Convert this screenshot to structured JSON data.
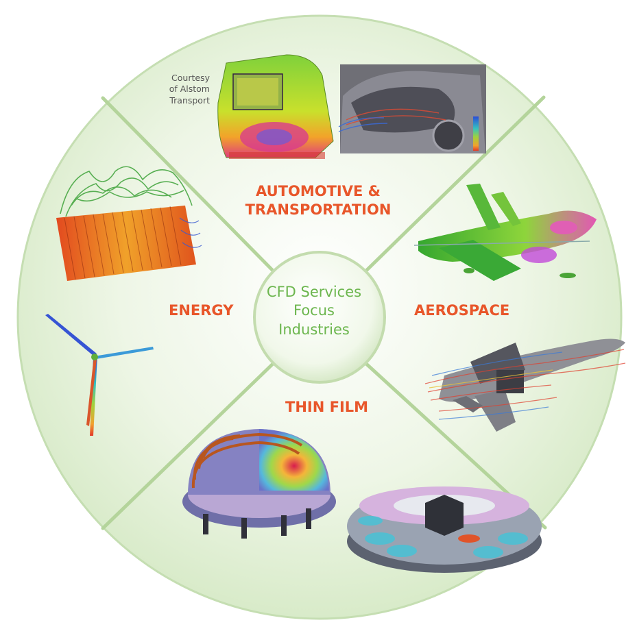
{
  "center": {
    "lines": [
      "CFD Services",
      "Focus",
      "Industries"
    ]
  },
  "segments": {
    "automotive": {
      "line1": "AUTOMOTIVE &",
      "line2": "TRANSPORTATION"
    },
    "aerospace": {
      "label": "AEROSPACE"
    },
    "thin_film": {
      "label": "THIN FILM"
    },
    "energy": {
      "label": "ENERGY"
    }
  },
  "courtesy": {
    "line1": "Courtesy",
    "line2": "of Alstom",
    "line3": "Transport"
  },
  "images": [
    {
      "icon": "train-simulation-icon"
    },
    {
      "icon": "car-engine-simulation-icon"
    },
    {
      "icon": "fighter-jet-surface-icon"
    },
    {
      "icon": "fighter-jet-streamlines-icon"
    },
    {
      "icon": "reactor-chamber-icon"
    },
    {
      "icon": "wafer-chamber-icon"
    },
    {
      "icon": "wind-turbine-icon"
    },
    {
      "icon": "heat-exchanger-icon"
    }
  ],
  "colors": {
    "accent": "#e8562a",
    "center_text": "#6cb64e",
    "wheel_fill": "#e8f3dc",
    "divider": "#a9cf8e"
  }
}
